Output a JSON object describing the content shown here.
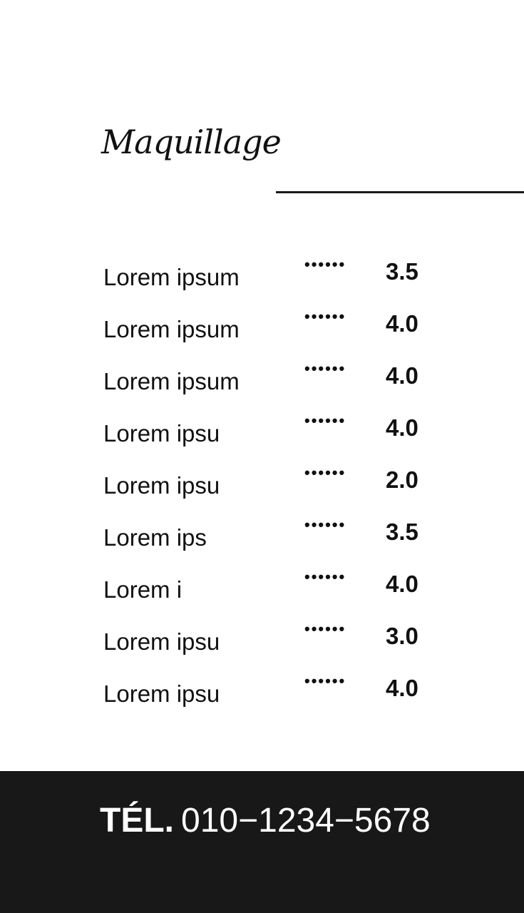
{
  "title": "Maquillage",
  "items": [
    {
      "label": "Lorem ipsum",
      "dots": "••••••",
      "price": "3.5"
    },
    {
      "label": "Lorem ipsum",
      "dots": "••••••",
      "price": "4.0"
    },
    {
      "label": "Lorem ipsum",
      "dots": "••••••",
      "price": "4.0"
    },
    {
      "label": "Lorem ipsu",
      "dots": "••••••",
      "price": "4.0"
    },
    {
      "label": "Lorem ipsu",
      "dots": "••••••",
      "price": "2.0"
    },
    {
      "label": "Lorem ips",
      "dots": "••••••",
      "price": "3.5"
    },
    {
      "label": "Lorem i",
      "dots": "••••••",
      "price": "4.0"
    },
    {
      "label": "Lorem ipsu",
      "dots": "••••••",
      "price": "3.0"
    },
    {
      "label": "Lorem ipsu",
      "dots": "••••••",
      "price": "4.0"
    }
  ],
  "footer": {
    "tel_label": "TÉL.",
    "tel_number": "010−1234−5678",
    "background": "#181818"
  }
}
